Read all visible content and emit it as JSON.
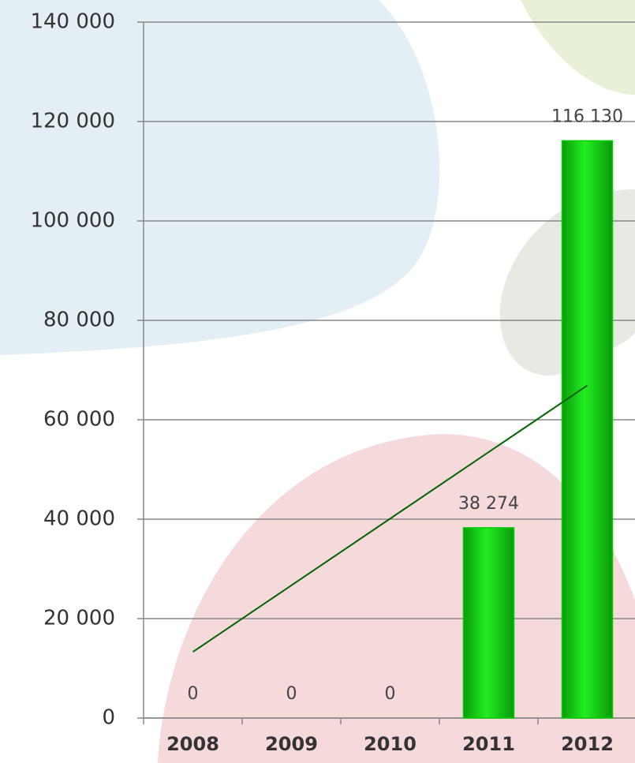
{
  "chart_data": {
    "type": "bar",
    "categories": [
      "2008",
      "2009",
      "2010",
      "2011",
      "2012"
    ],
    "values": [
      0,
      0,
      0,
      38274,
      116130
    ],
    "value_labels": [
      "0",
      "0",
      "0",
      "38 274",
      "116 130"
    ],
    "color": "#00d000",
    "trendline": {
      "values": [
        13300,
        26700,
        40100,
        53500,
        66900
      ],
      "color": "#006400"
    },
    "ylim": [
      0,
      140000
    ],
    "yticks": [
      0,
      {
        "value": 20000,
        "label": "20 000"
      },
      {
        "value": 40000,
        "label": "40 000"
      },
      {
        "value": 60000,
        "label": "60 000"
      },
      {
        "value": 80000,
        "label": "80 000"
      },
      {
        "value": 100000,
        "label": "100 000"
      },
      {
        "value": 120000,
        "label": "120 000"
      },
      {
        "value": 140000,
        "label": "140 000"
      }
    ],
    "grid": true
  }
}
